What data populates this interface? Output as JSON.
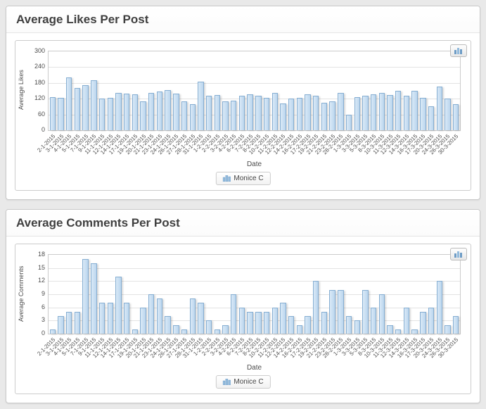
{
  "colors": {
    "page_bg": "#e9e9e9",
    "panel_border": "#c9c9c9",
    "title_color": "#3f3f3f",
    "plot_border": "#cbcbcb",
    "grid_line": "#e3e3e3",
    "bar_fill": "#bcd6ee",
    "bar_fill_light": "#d9e9f7",
    "bar_border": "#86aed2",
    "accent_blue": "#6d9cc6"
  },
  "icons": {
    "chart_menu": "bar-chart-icon",
    "legend_swatch": "bar-chart-icon"
  },
  "chart_data": [
    {
      "type": "bar",
      "title": "Average Likes Per Post",
      "xlabel": "Date",
      "ylabel": "Average Likes",
      "ylim": [
        0,
        300
      ],
      "yticks": [
        0,
        60,
        120,
        180,
        240,
        300
      ],
      "grid": true,
      "legend_position": "south",
      "categories": [
        "2-1-2015",
        "3-1-2015",
        "4-1-2015",
        "5-1-2015",
        "7-1-2015",
        "9-1-2015",
        "11-1-2015",
        "12-1-2015",
        "14-1-2015",
        "17-1-2015",
        "19-1-2015",
        "20-1-2015",
        "21-1-2015",
        "23-1-2015",
        "24-1-2015",
        "26-1-2015",
        "27-1-2015",
        "28-1-2015",
        "31-1-2015",
        "1-2-2015",
        "2-2-2015",
        "3-2-2015",
        "4-2-2015",
        "6-2-2015",
        "7-2-2015",
        "8-2-2015",
        "10-2-2015",
        "11-2-2015",
        "12-2-2015",
        "14-2-2015",
        "16-2-2015",
        "17-2-2015",
        "19-2-2015",
        "21-2-2015",
        "23-2-2015",
        "28-2-2015",
        "1-3-2015",
        "3-3-2015",
        "5-3-2015",
        "8-3-2015",
        "10-3-2015",
        "11-3-2015",
        "12-3-2015",
        "14-3-2015",
        "16-3-2015",
        "17-3-2015",
        "20-3-2015",
        "24-3-2015",
        "26-3-2015",
        "30-3-2015"
      ],
      "series": [
        {
          "name": "Monice C",
          "values": [
            126,
            124,
            201,
            160,
            172,
            190,
            121,
            123,
            141,
            140,
            136,
            110,
            141,
            148,
            152,
            140,
            111,
            100,
            186,
            131,
            133,
            111,
            112,
            131,
            136,
            130,
            122,
            141,
            101,
            121,
            122,
            136,
            131,
            105,
            111,
            142,
            60,
            126,
            131,
            136,
            141,
            135,
            151,
            131,
            151,
            122,
            92,
            166,
            120,
            100
          ]
        }
      ]
    },
    {
      "type": "bar",
      "title": "Average Comments Per Post",
      "xlabel": "Date",
      "ylabel": "Average Comments",
      "ylim": [
        0,
        18
      ],
      "yticks": [
        0,
        3,
        6,
        9,
        12,
        15,
        18
      ],
      "grid": true,
      "legend_position": "south",
      "categories": [
        "2-1-2015",
        "3-1-2015",
        "4-1-2015",
        "5-1-2015",
        "7-1-2015",
        "9-1-2015",
        "11-1-2015",
        "12-1-2015",
        "14-1-2015",
        "17-1-2015",
        "19-1-2015",
        "20-1-2015",
        "21-1-2015",
        "23-1-2015",
        "24-1-2015",
        "26-1-2015",
        "27-1-2015",
        "28-1-2015",
        "31-1-2015",
        "1-2-2015",
        "2-2-2015",
        "3-2-2015",
        "4-2-2015",
        "6-2-2015",
        "7-2-2015",
        "8-2-2015",
        "10-2-2015",
        "11-2-2015",
        "12-2-2015",
        "14-2-2015",
        "16-2-2015",
        "17-2-2015",
        "19-2-2015",
        "21-2-2015",
        "23-2-2015",
        "28-2-2015",
        "1-3-2015",
        "3-3-2015",
        "5-3-2015",
        "8-3-2015",
        "10-3-2015",
        "11-3-2015",
        "12-3-2015",
        "14-3-2015",
        "16-3-2015",
        "17-3-2015",
        "20-3-2015",
        "24-3-2015",
        "26-3-2015",
        "30-3-2015"
      ],
      "series": [
        {
          "name": "Monice C",
          "values": [
            1,
            4,
            5,
            5,
            17,
            16,
            7,
            7,
            13,
            7,
            1,
            6,
            9,
            8,
            4,
            2,
            1,
            8,
            7,
            3,
            1,
            2,
            9,
            6,
            5,
            5,
            5,
            6,
            7,
            4,
            2,
            4,
            12,
            5,
            10,
            10,
            4,
            3,
            10,
            6,
            9,
            2,
            1,
            6,
            1,
            5,
            6,
            12,
            2,
            4
          ]
        }
      ]
    }
  ]
}
